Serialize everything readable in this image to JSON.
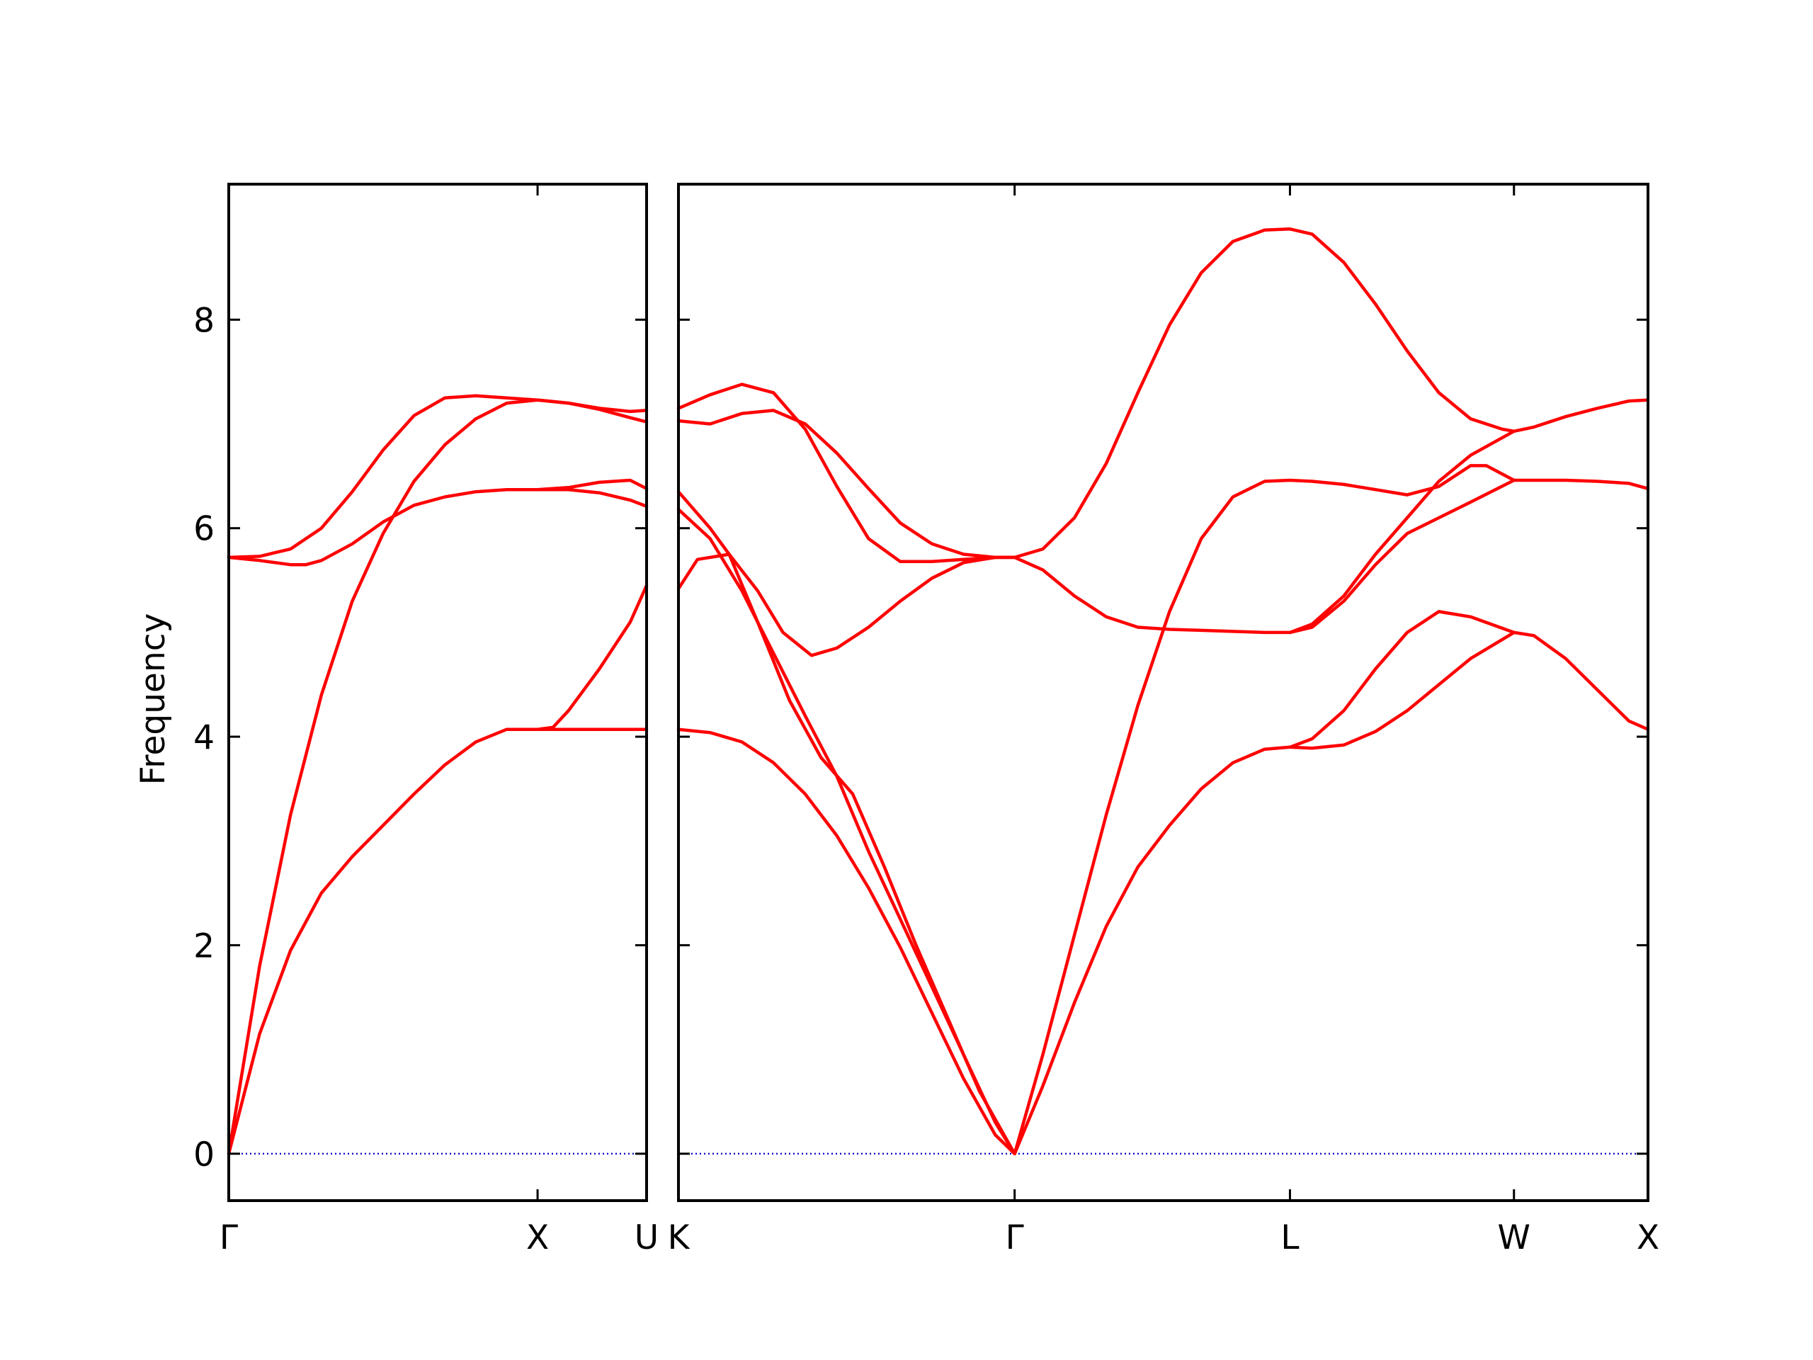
{
  "chart_data": {
    "type": "line",
    "title": "",
    "ylabel": "Frequency",
    "ylim": [
      -0.45,
      9.3
    ],
    "yticks": [
      0,
      2,
      4,
      6,
      8
    ],
    "grid": false,
    "legend": "none",
    "line_color": "#ff0000",
    "zero_line_color": "#0000cc",
    "panels": [
      {
        "xlim": [
          0,
          1.353
        ],
        "xticks": [
          {
            "x": 0,
            "label": "Γ"
          },
          {
            "x": 1.0,
            "label": "X"
          },
          {
            "x": 1.353,
            "label": "U"
          }
        ],
        "series": [
          {
            "x": [
              0,
              0.1,
              0.2,
              0.3,
              0.4,
              0.5,
              0.6,
              0.7,
              0.8,
              0.9,
              1.0,
              1.05,
              1.1,
              1.2,
              1.3,
              1.353
            ],
            "y": [
              0,
              1.15,
              1.95,
              2.5,
              2.85,
              3.15,
              3.45,
              3.73,
              3.95,
              4.07,
              4.07,
              4.09,
              4.25,
              4.65,
              5.1,
              5.45
            ]
          },
          {
            "x": [
              0,
              0.1,
              0.2,
              0.3,
              0.4,
              0.5,
              0.6,
              0.7,
              0.8,
              0.9,
              1.0,
              1.1,
              1.2,
              1.3,
              1.353
            ],
            "y": [
              0,
              1.8,
              3.25,
              4.4,
              5.3,
              5.95,
              6.45,
              6.8,
              7.05,
              7.2,
              7.23,
              7.2,
              7.15,
              7.12,
              7.13
            ]
          },
          {
            "x": [
              0,
              0.1,
              0.2,
              0.3,
              0.4,
              0.5,
              0.6,
              0.7,
              0.8,
              0.9,
              1.0,
              1.1,
              1.2,
              1.3,
              1.353
            ],
            "y": [
              5.72,
              5.73,
              5.8,
              6.0,
              6.35,
              6.75,
              7.08,
              7.25,
              7.27,
              7.25,
              7.23,
              7.2,
              7.14,
              7.06,
              7.02
            ]
          },
          {
            "x": [
              0,
              0.1,
              0.2,
              0.25,
              0.3,
              0.4,
              0.5,
              0.6,
              0.7,
              0.8,
              0.9,
              1.0,
              1.1,
              1.2,
              1.3,
              1.353
            ],
            "y": [
              5.72,
              5.69,
              5.65,
              5.65,
              5.69,
              5.85,
              6.06,
              6.22,
              6.3,
              6.35,
              6.37,
              6.37,
              6.37,
              6.34,
              6.27,
              6.21
            ]
          },
          {
            "x": [
              1.0,
              1.1,
              1.2,
              1.3,
              1.353
            ],
            "y": [
              6.37,
              6.39,
              6.44,
              6.46,
              6.38
            ]
          },
          {
            "x": [
              1.0,
              1.1,
              1.2,
              1.3,
              1.353
            ],
            "y": [
              4.07,
              4.07,
              4.07,
              4.07,
              4.07
            ]
          }
        ]
      },
      {
        "xlim": [
          0,
          3.06
        ],
        "xticks": [
          {
            "x": 0,
            "label": "K"
          },
          {
            "x": 1.061,
            "label": "Γ"
          },
          {
            "x": 1.93,
            "label": "L"
          },
          {
            "x": 2.637,
            "label": "W"
          },
          {
            "x": 3.06,
            "label": "X"
          }
        ],
        "series": [
          {
            "x": [
              0,
              0.1,
              0.2,
              0.3,
              0.4,
              0.5,
              0.6,
              0.7,
              0.8,
              0.9,
              1.0,
              1.061
            ],
            "y": [
              4.07,
              4.04,
              3.95,
              3.75,
              3.45,
              3.05,
              2.55,
              1.98,
              1.35,
              0.72,
              0.18,
              0
            ]
          },
          {
            "x": [
              0,
              0.1,
              0.16,
              0.25,
              0.35,
              0.45,
              0.55,
              0.65,
              0.75,
              0.85,
              0.95,
              1.061
            ],
            "y": [
              6.35,
              6.0,
              5.75,
              5.1,
              4.35,
              3.8,
              3.45,
              2.75,
              2.0,
              1.3,
              0.6,
              0
            ]
          },
          {
            "x": [
              0,
              0.1,
              0.2,
              0.3,
              0.4,
              0.5,
              0.6,
              0.7,
              0.8,
              0.9,
              1.0,
              1.061
            ],
            "y": [
              6.18,
              5.9,
              5.4,
              4.8,
              4.2,
              3.62,
              2.9,
              2.25,
              1.6,
              0.95,
              0.3,
              0
            ]
          },
          {
            "x": [
              0,
              0.06,
              0.16,
              0.25,
              0.33,
              0.42,
              0.5,
              0.6,
              0.7,
              0.8,
              0.9,
              1.0,
              1.061
            ],
            "y": [
              5.42,
              5.7,
              5.75,
              5.4,
              5.0,
              4.78,
              4.85,
              5.05,
              5.3,
              5.52,
              5.67,
              5.72,
              5.72
            ]
          },
          {
            "x": [
              0,
              0.1,
              0.2,
              0.3,
              0.4,
              0.5,
              0.6,
              0.7,
              0.8,
              0.9,
              1.0,
              1.061
            ],
            "y": [
              7.15,
              7.28,
              7.38,
              7.3,
              6.95,
              6.4,
              5.9,
              5.68,
              5.68,
              5.7,
              5.72,
              5.72
            ]
          },
          {
            "x": [
              0,
              0.1,
              0.2,
              0.3,
              0.4,
              0.5,
              0.6,
              0.7,
              0.8,
              0.9,
              1.0,
              1.061
            ],
            "y": [
              7.03,
              7.0,
              7.1,
              7.13,
              7.0,
              6.72,
              6.38,
              6.05,
              5.85,
              5.75,
              5.72,
              5.72
            ]
          },
          {
            "x": [
              1.061,
              1.15,
              1.25,
              1.35,
              1.45,
              1.55,
              1.65,
              1.75,
              1.85,
              1.93,
              2.0,
              2.1,
              2.2,
              2.3,
              2.4,
              2.5,
              2.6,
              2.637,
              2.7,
              2.8,
              2.9,
              3.0,
              3.06
            ],
            "y": [
              5.72,
              5.8,
              6.1,
              6.62,
              7.3,
              7.95,
              8.45,
              8.75,
              8.86,
              8.87,
              8.82,
              8.55,
              8.15,
              7.7,
              7.3,
              7.05,
              6.95,
              6.93,
              6.97,
              7.07,
              7.15,
              7.22,
              7.23
            ]
          },
          {
            "x": [
              1.061,
              1.15,
              1.25,
              1.35,
              1.45,
              1.55,
              1.65,
              1.75,
              1.85,
              1.93
            ],
            "y": [
              5.72,
              5.6,
              5.35,
              5.15,
              5.05,
              5.03,
              5.02,
              5.01,
              5.0,
              5.0
            ]
          },
          {
            "x": [
              1.061,
              1.15,
              1.25,
              1.35,
              1.45,
              1.55,
              1.65,
              1.75,
              1.85,
              1.93,
              2.0,
              2.1,
              2.2,
              2.3,
              2.4,
              2.5,
              2.55,
              2.637,
              2.7,
              2.8,
              2.9,
              3.0,
              3.06
            ],
            "y": [
              0,
              0.95,
              2.1,
              3.25,
              4.3,
              5.2,
              5.9,
              6.3,
              6.45,
              6.46,
              6.45,
              6.42,
              6.37,
              6.32,
              6.4,
              6.6,
              6.6,
              6.46,
              6.46,
              6.46,
              6.45,
              6.43,
              6.38
            ]
          },
          {
            "x": [
              1.061,
              1.15,
              1.25,
              1.35,
              1.45,
              1.55,
              1.65,
              1.75,
              1.85,
              1.93,
              2.0,
              2.1,
              2.2,
              2.3,
              2.4,
              2.5,
              2.637
            ],
            "y": [
              0,
              0.65,
              1.45,
              2.18,
              2.75,
              3.15,
              3.5,
              3.75,
              3.88,
              3.9,
              3.98,
              4.25,
              4.65,
              5.0,
              5.2,
              5.15,
              5.0
            ]
          },
          {
            "x": [
              1.93,
              2.0,
              2.1,
              2.2,
              2.3,
              2.4,
              2.5,
              2.637,
              2.7,
              2.8,
              2.9,
              3.0,
              3.06
            ],
            "y": [
              3.9,
              3.89,
              3.92,
              4.05,
              4.25,
              4.5,
              4.75,
              5.0,
              4.97,
              4.75,
              4.45,
              4.15,
              4.07
            ]
          },
          {
            "x": [
              1.93,
              2.0,
              2.1,
              2.2,
              2.3,
              2.4,
              2.5,
              2.637
            ],
            "y": [
              5.0,
              5.08,
              5.35,
              5.75,
              6.1,
              6.45,
              6.7,
              6.93
            ]
          },
          {
            "x": [
              1.93,
              2.0,
              2.1,
              2.2,
              2.3,
              2.4,
              2.5,
              2.637
            ],
            "y": [
              5.0,
              5.05,
              5.3,
              5.65,
              5.95,
              6.1,
              6.25,
              6.46
            ]
          }
        ]
      }
    ]
  }
}
